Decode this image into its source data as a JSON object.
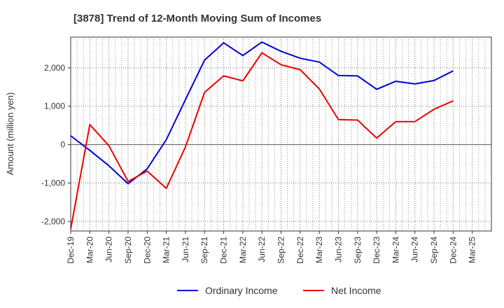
{
  "chart_data": {
    "type": "line",
    "title": "[3878]  Trend of 12-Month Moving Sum of Incomes",
    "xlabel": "",
    "ylabel": "Amount (million yen)",
    "ylim": [
      -2250,
      2800
    ],
    "yticks": [
      2000,
      1000,
      0,
      -1000,
      -2000
    ],
    "ytick_labels": [
      "2,000",
      "1,000",
      "0",
      "-1,000",
      "-2,000"
    ],
    "x_tick_labels": [
      "Dec-19",
      "Mar-20",
      "Jun-20",
      "Sep-20",
      "Dec-20",
      "Mar-21",
      "Jun-21",
      "Sep-21",
      "Dec-21",
      "Mar-22",
      "Jun-22",
      "Sep-22",
      "Dec-22",
      "Mar-23",
      "Jun-23",
      "Sep-23",
      "Dec-23",
      "Mar-24",
      "Jun-24",
      "Sep-24",
      "Dec-24",
      "Mar-25"
    ],
    "series": [
      {
        "name": "Ordinary Income",
        "color": "#0000dd",
        "values": [
          230,
          -150,
          -550,
          -1020,
          -630,
          130,
          1170,
          2200,
          2650,
          2320,
          2670,
          2430,
          2250,
          2150,
          1800,
          1790,
          1440,
          1650,
          1580,
          1670,
          1920
        ]
      },
      {
        "name": "Net Income",
        "color": "#ee0000",
        "values": [
          -2200,
          520,
          -30,
          -960,
          -690,
          -1140,
          -60,
          1360,
          1790,
          1660,
          2390,
          2080,
          1950,
          1450,
          650,
          640,
          170,
          600,
          600,
          920,
          1140
        ]
      }
    ],
    "grid": true,
    "legend_position": "bottom-center"
  }
}
